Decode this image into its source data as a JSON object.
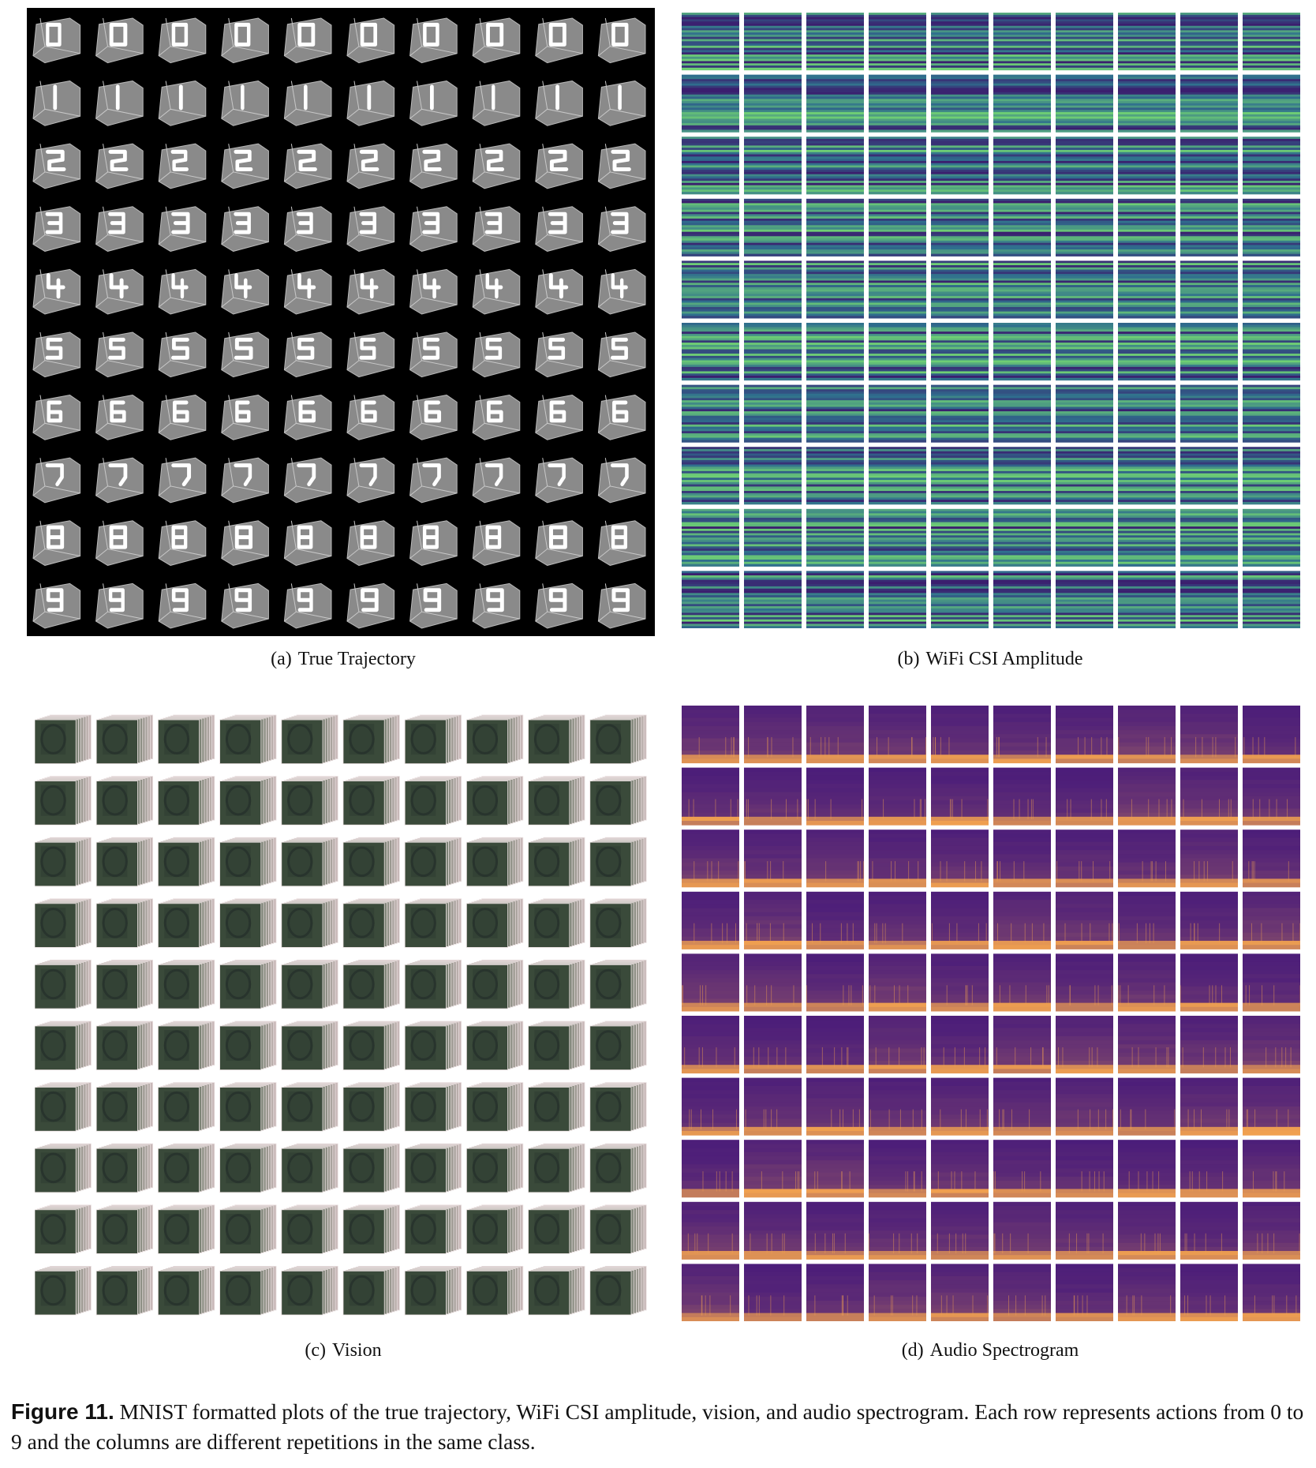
{
  "figure": {
    "number": "Figure 11.",
    "caption": "MNIST formatted plots of the true trajectory, WiFi CSI amplitude, vision, and audio spectrogram. Each row represents actions from 0 to 9 and the columns are different repetitions in the same class."
  },
  "panels": [
    {
      "id": "a",
      "label": "(a)",
      "title": "True Trajectory"
    },
    {
      "id": "b",
      "label": "(b)",
      "title": "WiFi CSI Amplitude"
    },
    {
      "id": "c",
      "label": "(c)",
      "title": "Vision"
    },
    {
      "id": "d",
      "label": "(d)",
      "title": "Audio Spectrogram"
    }
  ],
  "grid": {
    "rows": 10,
    "columns": 10,
    "row_classes": [
      "0",
      "1",
      "2",
      "3",
      "4",
      "5",
      "6",
      "7",
      "8",
      "9"
    ]
  },
  "colors": {
    "trajectory_background": "#000000",
    "trajectory_cube": "#8a8a8a",
    "trajectory_stroke": "#ffffff",
    "csi_dark": "#3b1e6e",
    "csi_mid": "#2f6f8e",
    "csi_bright": "#6fcf74",
    "vision_frame": "#3a4a3a",
    "spectrogram_low": "#4a1c7a",
    "spectrogram_high": "#f0a050"
  }
}
